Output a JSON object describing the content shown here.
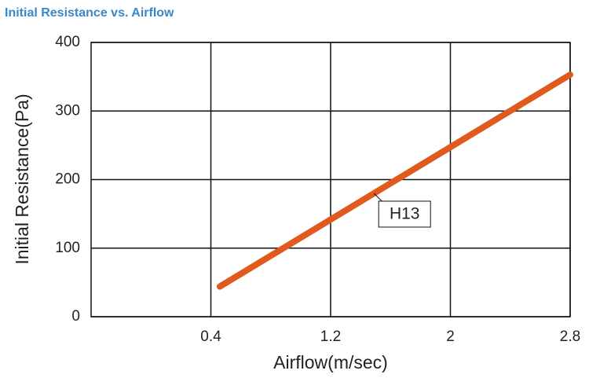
{
  "chart_data": {
    "type": "line",
    "title": "Initial Resistance vs. Airflow",
    "x_label": "Airflow(m/sec)",
    "y_label": "Initial Resistance(Pa)",
    "x": [
      0.46,
      2.8
    ],
    "series": [
      {
        "name": "H13",
        "color": "#e05a1e",
        "values": [
          44,
          353
        ]
      }
    ],
    "xlim": [
      -0.4,
      2.8
    ],
    "xticks": [
      0.4,
      1.2,
      2,
      2.8
    ],
    "ylim": [
      0,
      400
    ],
    "yticks": [
      0,
      100,
      200,
      300,
      400
    ],
    "grid": true
  }
}
